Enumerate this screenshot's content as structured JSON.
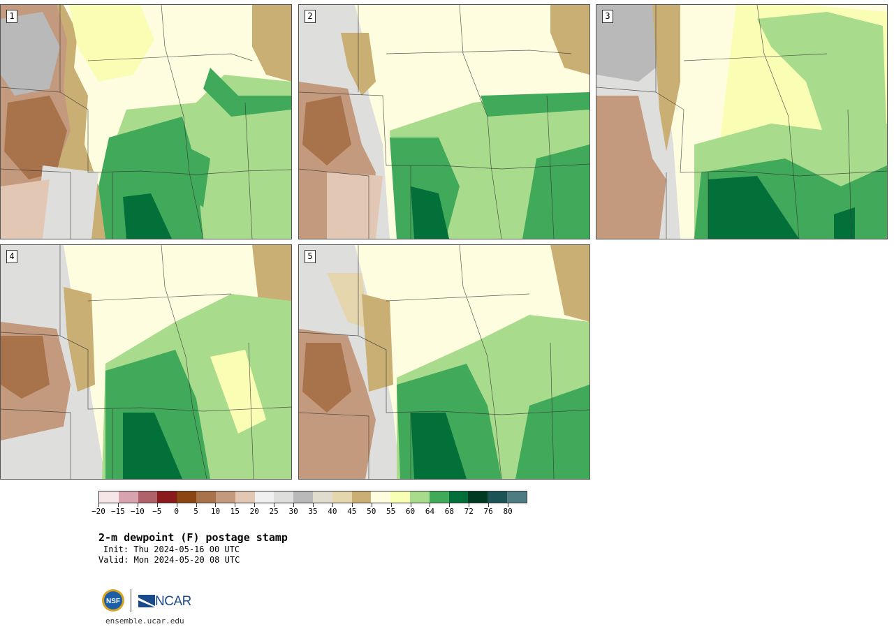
{
  "panels": [
    {
      "number": "1"
    },
    {
      "number": "2"
    },
    {
      "number": "3"
    },
    {
      "number": "4"
    },
    {
      "number": "5"
    }
  ],
  "colorbar": {
    "colors": [
      "#f7e6e8",
      "#d7a4ad",
      "#b0626a",
      "#8b1a1f",
      "#8a4513",
      "#a8724b",
      "#c49a7e",
      "#e2c7b5",
      "#f1f0f0",
      "#dededd",
      "#b9b9b9",
      "#e1dccd",
      "#e5d6ae",
      "#c9af73",
      "#fffde0",
      "#fafdb4",
      "#a8dc8c",
      "#41a95a",
      "#03703a",
      "#003a22",
      "#1c5357",
      "#4f7c84"
    ],
    "tick_labels": [
      "−20",
      "−15",
      "−10",
      "−5",
      "0",
      "5",
      "10",
      "15",
      "20",
      "25",
      "30",
      "35",
      "40",
      "45",
      "50",
      "55",
      "60",
      "64",
      "68",
      "72",
      "76",
      "80"
    ]
  },
  "title": "2-m dewpoint (F) postage stamp",
  "init_text": "Init: Thu 2024-05-16 00 UTC",
  "valid_text": "Valid: Mon 2024-05-20 08 UTC",
  "logos": {
    "nsf": "NSF",
    "ncar": "NCAR"
  },
  "website": "ensemble.ucar.edu"
}
